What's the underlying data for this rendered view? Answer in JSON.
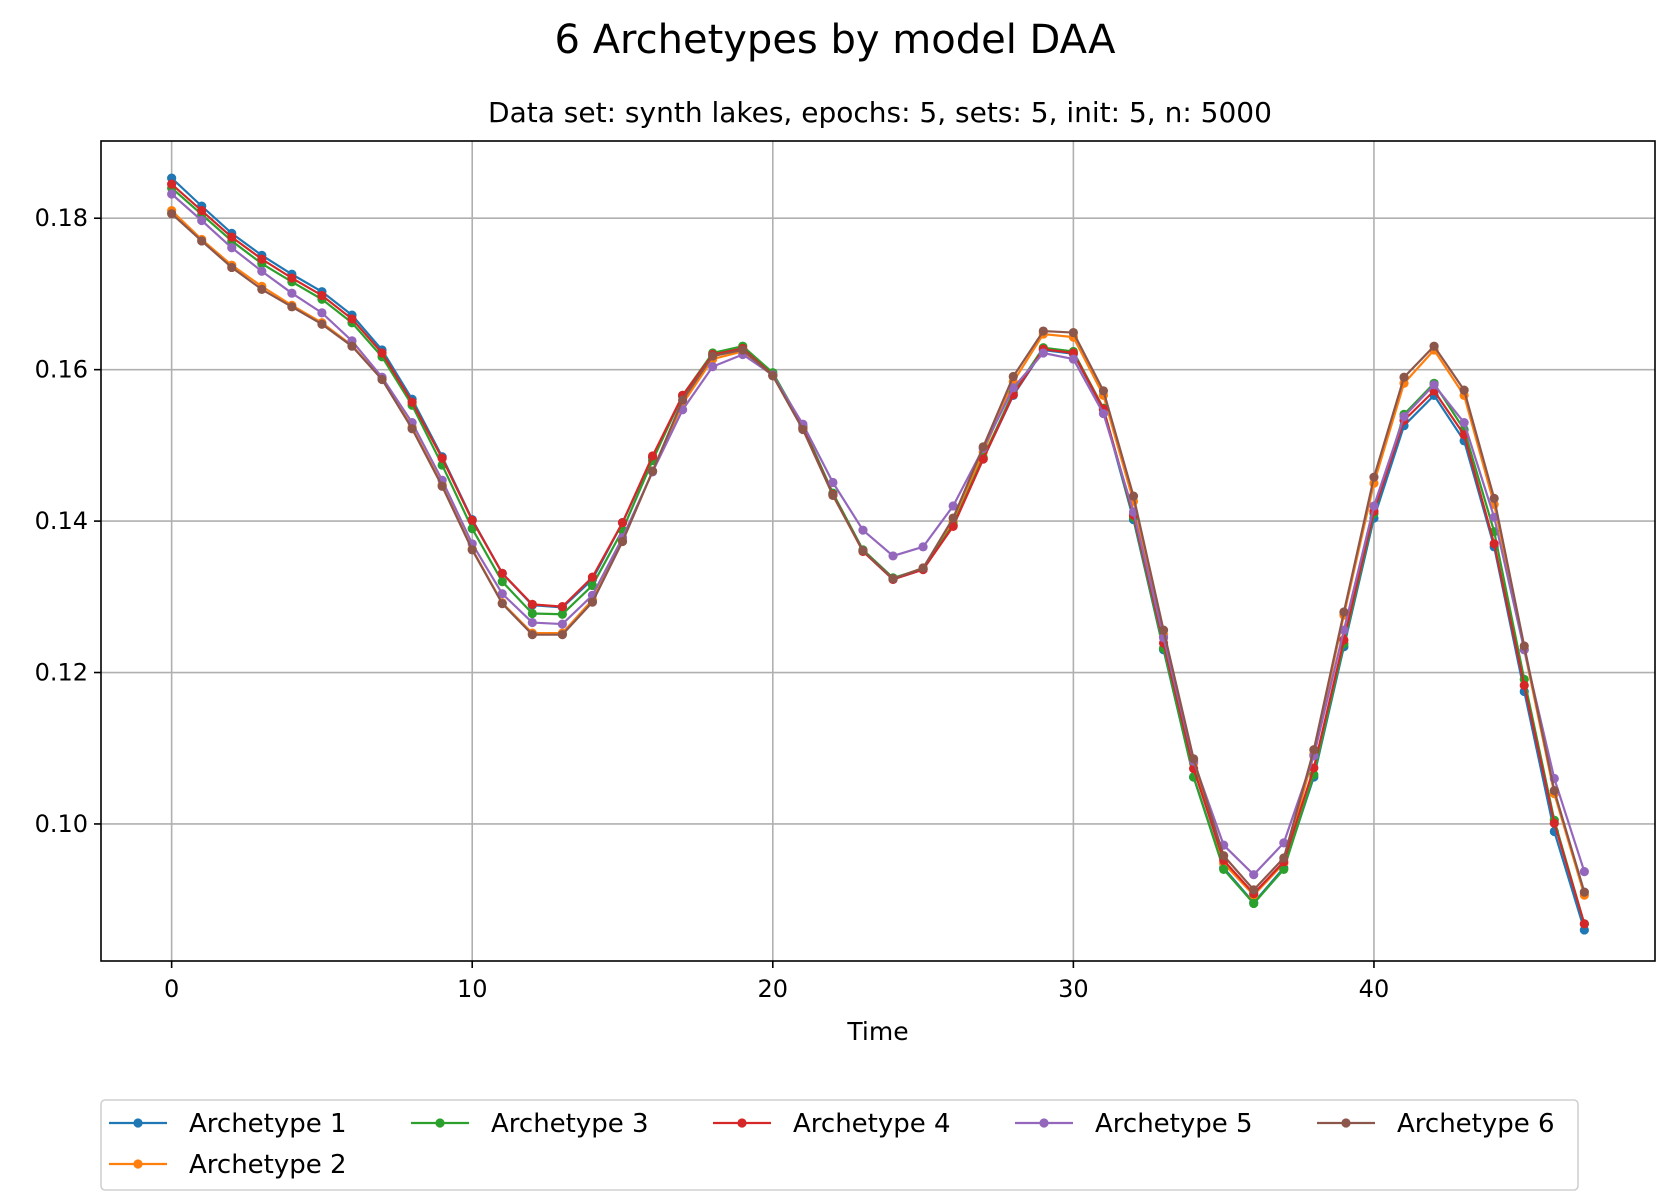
{
  "chart_data": {
    "type": "line",
    "title": "6 Archetypes by model DAA",
    "subtitle": "Data set: synth lakes, epochs: 5, sets: 5, init: 5, n: 5000",
    "xlabel": "Time",
    "ylabel": "",
    "xlim": [
      -2.35,
      49.35
    ],
    "ylim": [
      0.0819,
      0.1902
    ],
    "xticks": [
      0,
      10,
      20,
      30,
      40
    ],
    "xtick_labels": [
      "0",
      "10",
      "20",
      "30",
      "40"
    ],
    "yticks": [
      0.1,
      0.12,
      0.14,
      0.16,
      0.18
    ],
    "ytick_labels": [
      "0.10",
      "0.12",
      "0.14",
      "0.16",
      "0.18"
    ],
    "grid": true,
    "legend_placement": "below",
    "x": [
      0,
      1,
      2,
      3,
      4,
      5,
      6,
      7,
      8,
      9,
      10,
      11,
      12,
      13,
      14,
      15,
      16,
      17,
      18,
      19,
      20,
      21,
      22,
      23,
      24,
      25,
      26,
      27,
      28,
      29,
      30,
      31,
      32,
      33,
      34,
      35,
      36,
      37,
      38,
      39,
      40,
      41,
      42,
      43,
      44,
      45,
      46,
      47
    ],
    "series": [
      {
        "name": "Archetype 1",
        "color": "#1f77b4",
        "values": [
          0.1853,
          0.1816,
          0.178,
          0.1751,
          0.1726,
          0.1703,
          0.1672,
          0.1626,
          0.1561,
          0.1485,
          0.1402,
          0.1331,
          0.1289,
          0.1286,
          0.1323,
          0.1398,
          0.1484,
          0.1565,
          0.1618,
          0.1627,
          0.1592,
          0.1524,
          0.1436,
          0.136,
          0.1323,
          0.1336,
          0.1394,
          0.1482,
          0.1566,
          0.1626,
          0.1621,
          0.1547,
          0.1402,
          0.123,
          0.1062,
          0.0942,
          0.0896,
          0.0942,
          0.1062,
          0.1234,
          0.1404,
          0.1526,
          0.1566,
          0.1506,
          0.1366,
          0.1175,
          0.099,
          0.086
        ]
      },
      {
        "name": "Archetype 2",
        "color": "#ff7f0e",
        "values": [
          0.181,
          0.1772,
          0.1738,
          0.171,
          0.1685,
          0.1662,
          0.1632,
          0.1588,
          0.1524,
          0.1448,
          0.1363,
          0.1292,
          0.1252,
          0.1252,
          0.1296,
          0.1374,
          0.1466,
          0.1555,
          0.1614,
          0.1624,
          0.1592,
          0.1522,
          0.1434,
          0.136,
          0.1324,
          0.1338,
          0.1398,
          0.1491,
          0.1584,
          0.1647,
          0.1643,
          0.1566,
          0.1426,
          0.125,
          0.108,
          0.0948,
          0.0906,
          0.0948,
          0.1092,
          0.1276,
          0.145,
          0.1582,
          0.1626,
          0.1566,
          0.1422,
          0.123,
          0.104,
          0.0906
        ]
      },
      {
        "name": "Archetype 3",
        "color": "#2ca02c",
        "values": [
          0.184,
          0.1805,
          0.177,
          0.174,
          0.1716,
          0.1693,
          0.1662,
          0.1617,
          0.1553,
          0.1474,
          0.139,
          0.132,
          0.1278,
          0.1277,
          0.1315,
          0.1388,
          0.148,
          0.1566,
          0.1622,
          0.1631,
          0.1596,
          0.1526,
          0.1437,
          0.1362,
          0.1325,
          0.1337,
          0.1395,
          0.1484,
          0.157,
          0.1629,
          0.1624,
          0.1549,
          0.1405,
          0.1232,
          0.1062,
          0.094,
          0.0895,
          0.094,
          0.1065,
          0.1238,
          0.141,
          0.1541,
          0.1582,
          0.1521,
          0.1386,
          0.1191,
          0.1005,
          0.0868
        ]
      },
      {
        "name": "Archetype 4",
        "color": "#d62728",
        "values": [
          0.1845,
          0.181,
          0.1775,
          0.1746,
          0.1721,
          0.1698,
          0.1667,
          0.1622,
          0.1557,
          0.1483,
          0.1401,
          0.1331,
          0.129,
          0.1287,
          0.1326,
          0.1398,
          0.1486,
          0.1566,
          0.162,
          0.1628,
          0.1593,
          0.1523,
          0.1435,
          0.136,
          0.1323,
          0.1336,
          0.1393,
          0.1482,
          0.1567,
          0.1627,
          0.1622,
          0.1548,
          0.1408,
          0.1239,
          0.1073,
          0.0952,
          0.0908,
          0.095,
          0.1074,
          0.1243,
          0.1413,
          0.1533,
          0.1572,
          0.1514,
          0.137,
          0.1183,
          0.1001,
          0.0868
        ]
      },
      {
        "name": "Archetype 5",
        "color": "#9467bd",
        "values": [
          0.1832,
          0.1797,
          0.1761,
          0.173,
          0.1701,
          0.1675,
          0.1638,
          0.159,
          0.153,
          0.1454,
          0.137,
          0.1304,
          0.1266,
          0.1264,
          0.1302,
          0.1378,
          0.1465,
          0.1547,
          0.1604,
          0.162,
          0.1593,
          0.1528,
          0.1451,
          0.1388,
          0.1354,
          0.1366,
          0.142,
          0.1496,
          0.1576,
          0.1622,
          0.1614,
          0.1542,
          0.1412,
          0.1246,
          0.1083,
          0.0972,
          0.0933,
          0.0975,
          0.109,
          0.1256,
          0.142,
          0.1538,
          0.158,
          0.153,
          0.1405,
          0.123,
          0.106,
          0.0937
        ]
      },
      {
        "name": "Archetype 6",
        "color": "#8c564b",
        "values": [
          0.1806,
          0.177,
          0.1735,
          0.1706,
          0.1683,
          0.166,
          0.1631,
          0.1587,
          0.1522,
          0.1446,
          0.1362,
          0.1291,
          0.125,
          0.125,
          0.1293,
          0.1373,
          0.1466,
          0.156,
          0.1618,
          0.1626,
          0.1592,
          0.1521,
          0.1434,
          0.1361,
          0.1324,
          0.1338,
          0.1404,
          0.1498,
          0.1591,
          0.1651,
          0.1649,
          0.1572,
          0.1433,
          0.1256,
          0.1086,
          0.0958,
          0.0913,
          0.0955,
          0.1098,
          0.128,
          0.1458,
          0.159,
          0.1631,
          0.1573,
          0.143,
          0.1235,
          0.1044,
          0.091
        ]
      }
    ]
  }
}
